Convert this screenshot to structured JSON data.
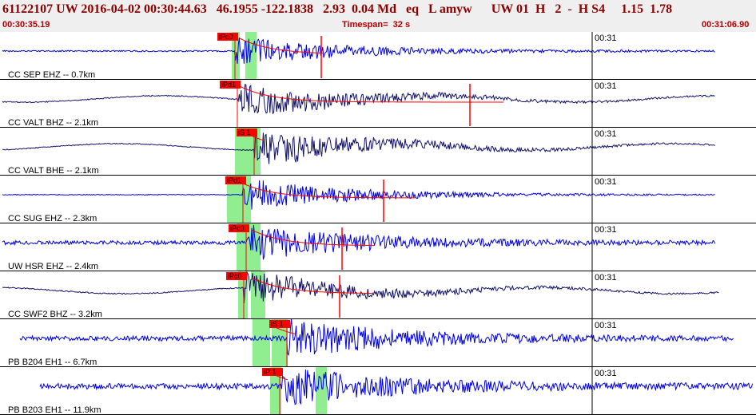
{
  "header": {
    "event_line": "61122107 UW 2016-04-02 00:30:44.63   46.1955 -122.1838   2.93  0.04 Md   eq   L amyw      UW 01  H   2  -  H S4     1.15  1.78",
    "start_time": "00:30:35.19",
    "timespan": "Timespan=  32 s",
    "end_time": "00:31:06.90"
  },
  "colors": {
    "header_bg": "#efefef",
    "header_text": "#8b0000",
    "trace_blue": "#0000dd",
    "trace_dark": "#111166",
    "pick": "#ff0000",
    "window": "#90ee90",
    "divider": "#000000"
  },
  "tick_label": "00:31",
  "channels": [
    {
      "label": "CC SEP EHZ -- 0.7km",
      "pick": "iPc0",
      "color": "blue",
      "amp": 0.7,
      "noise": 0.15
    },
    {
      "label": "CC VALT BHZ -- 2.1km",
      "pick": "iPd1",
      "color": "dark",
      "amp": 0.8,
      "noise": 0.12
    },
    {
      "label": "CC VALT BHE -- 2.1km",
      "pick": "iS 1",
      "color": "dark",
      "amp": 0.9,
      "noise": 0.1
    },
    {
      "label": "CC SUG EHZ -- 2.3km",
      "pick": "iPd1",
      "color": "blue",
      "amp": 0.8,
      "noise": 0.08
    },
    {
      "label": "UW HSR EHZ -- 2.4km",
      "pick": "iPc0",
      "color": "blue",
      "amp": 0.85,
      "noise": 0.4
    },
    {
      "label": "CC SWF2 BHZ -- 3.2km",
      "pick": "iPc0",
      "color": "dark",
      "amp": 0.8,
      "noise": 0.12
    },
    {
      "label": "PB B204 EH1 -- 6.7km",
      "pick": "iS 1",
      "color": "blue",
      "amp": 0.9,
      "noise": 0.5
    },
    {
      "label": "PB B203 EH1 -- 11.9km",
      "pick": "iP 1",
      "color": "blue",
      "amp": 0.9,
      "noise": 0.6
    }
  ]
}
